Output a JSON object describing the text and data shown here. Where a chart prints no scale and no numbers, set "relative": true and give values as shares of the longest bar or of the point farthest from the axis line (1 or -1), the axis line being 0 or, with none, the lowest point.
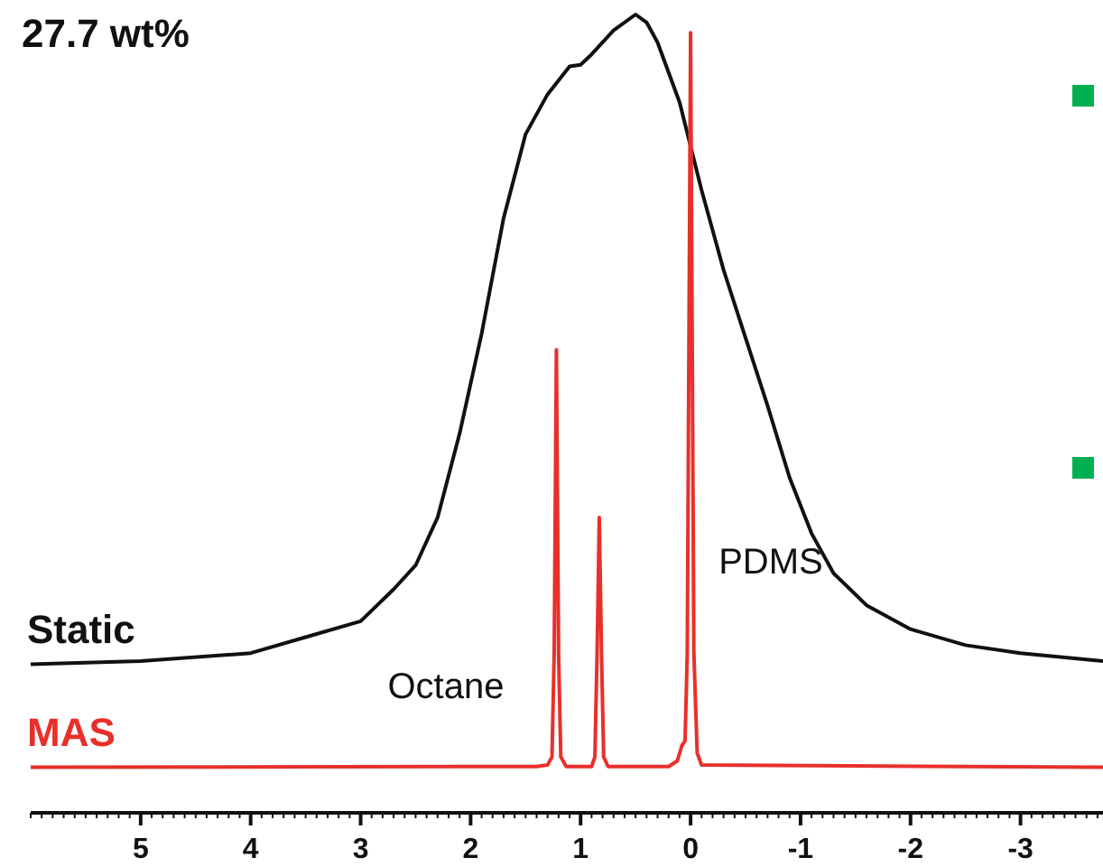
{
  "chart_data": {
    "type": "line",
    "title": "27.7 wt%",
    "relative": true,
    "legend": false,
    "marker": "none",
    "line_style": "solid",
    "grid": false,
    "tick_labels": "x",
    "xlim": [
      6,
      -3.75
    ],
    "xticks": [
      5,
      4,
      3,
      2,
      1,
      0,
      -1,
      -2,
      -3
    ],
    "annotations": [
      "Octane",
      "PDMS"
    ],
    "series": [
      {
        "name": "Static",
        "color": "#111111",
        "x": [
          6,
          5,
          4,
          3.5,
          3,
          2.7,
          2.5,
          2.3,
          2.1,
          1.9,
          1.7,
          1.5,
          1.3,
          1.1,
          1,
          0.9,
          0.7,
          0.5,
          0.4,
          0.3,
          0.1,
          -0.1,
          -0.3,
          -0.5,
          -0.7,
          -0.9,
          -1.1,
          -1.3,
          -1.6,
          -2,
          -2.5,
          -3,
          -3.75
        ],
        "values": [
          0.186,
          0.19,
          0.2,
          0.22,
          0.24,
          0.28,
          0.31,
          0.37,
          0.475,
          0.6,
          0.745,
          0.85,
          0.9,
          0.935,
          0.937,
          0.95,
          0.98,
          1,
          0.99,
          0.965,
          0.89,
          0.78,
          0.68,
          0.595,
          0.51,
          0.42,
          0.35,
          0.3,
          0.26,
          0.23,
          0.21,
          0.2,
          0.19
        ]
      },
      {
        "name": "MAS",
        "color": "#e8302a",
        "x": [
          6,
          1.4,
          1.3,
          1.26,
          1.24,
          1.22,
          1.2,
          1.18,
          1.13,
          0.9,
          0.87,
          0.85,
          0.83,
          0.81,
          0.79,
          0.75,
          0.2,
          0.12,
          0.08,
          0.05,
          0.03,
          0,
          -0.03,
          -0.06,
          -0.1,
          -3.75
        ],
        "values": [
          0.057,
          0.058,
          0.06,
          0.07,
          0.2,
          0.58,
          0.2,
          0.07,
          0.058,
          0.058,
          0.07,
          0.2,
          0.37,
          0.2,
          0.07,
          0.058,
          0.058,
          0.065,
          0.084,
          0.09,
          0.2,
          0.977,
          0.2,
          0.075,
          0.06,
          0.057
        ]
      }
    ]
  }
}
